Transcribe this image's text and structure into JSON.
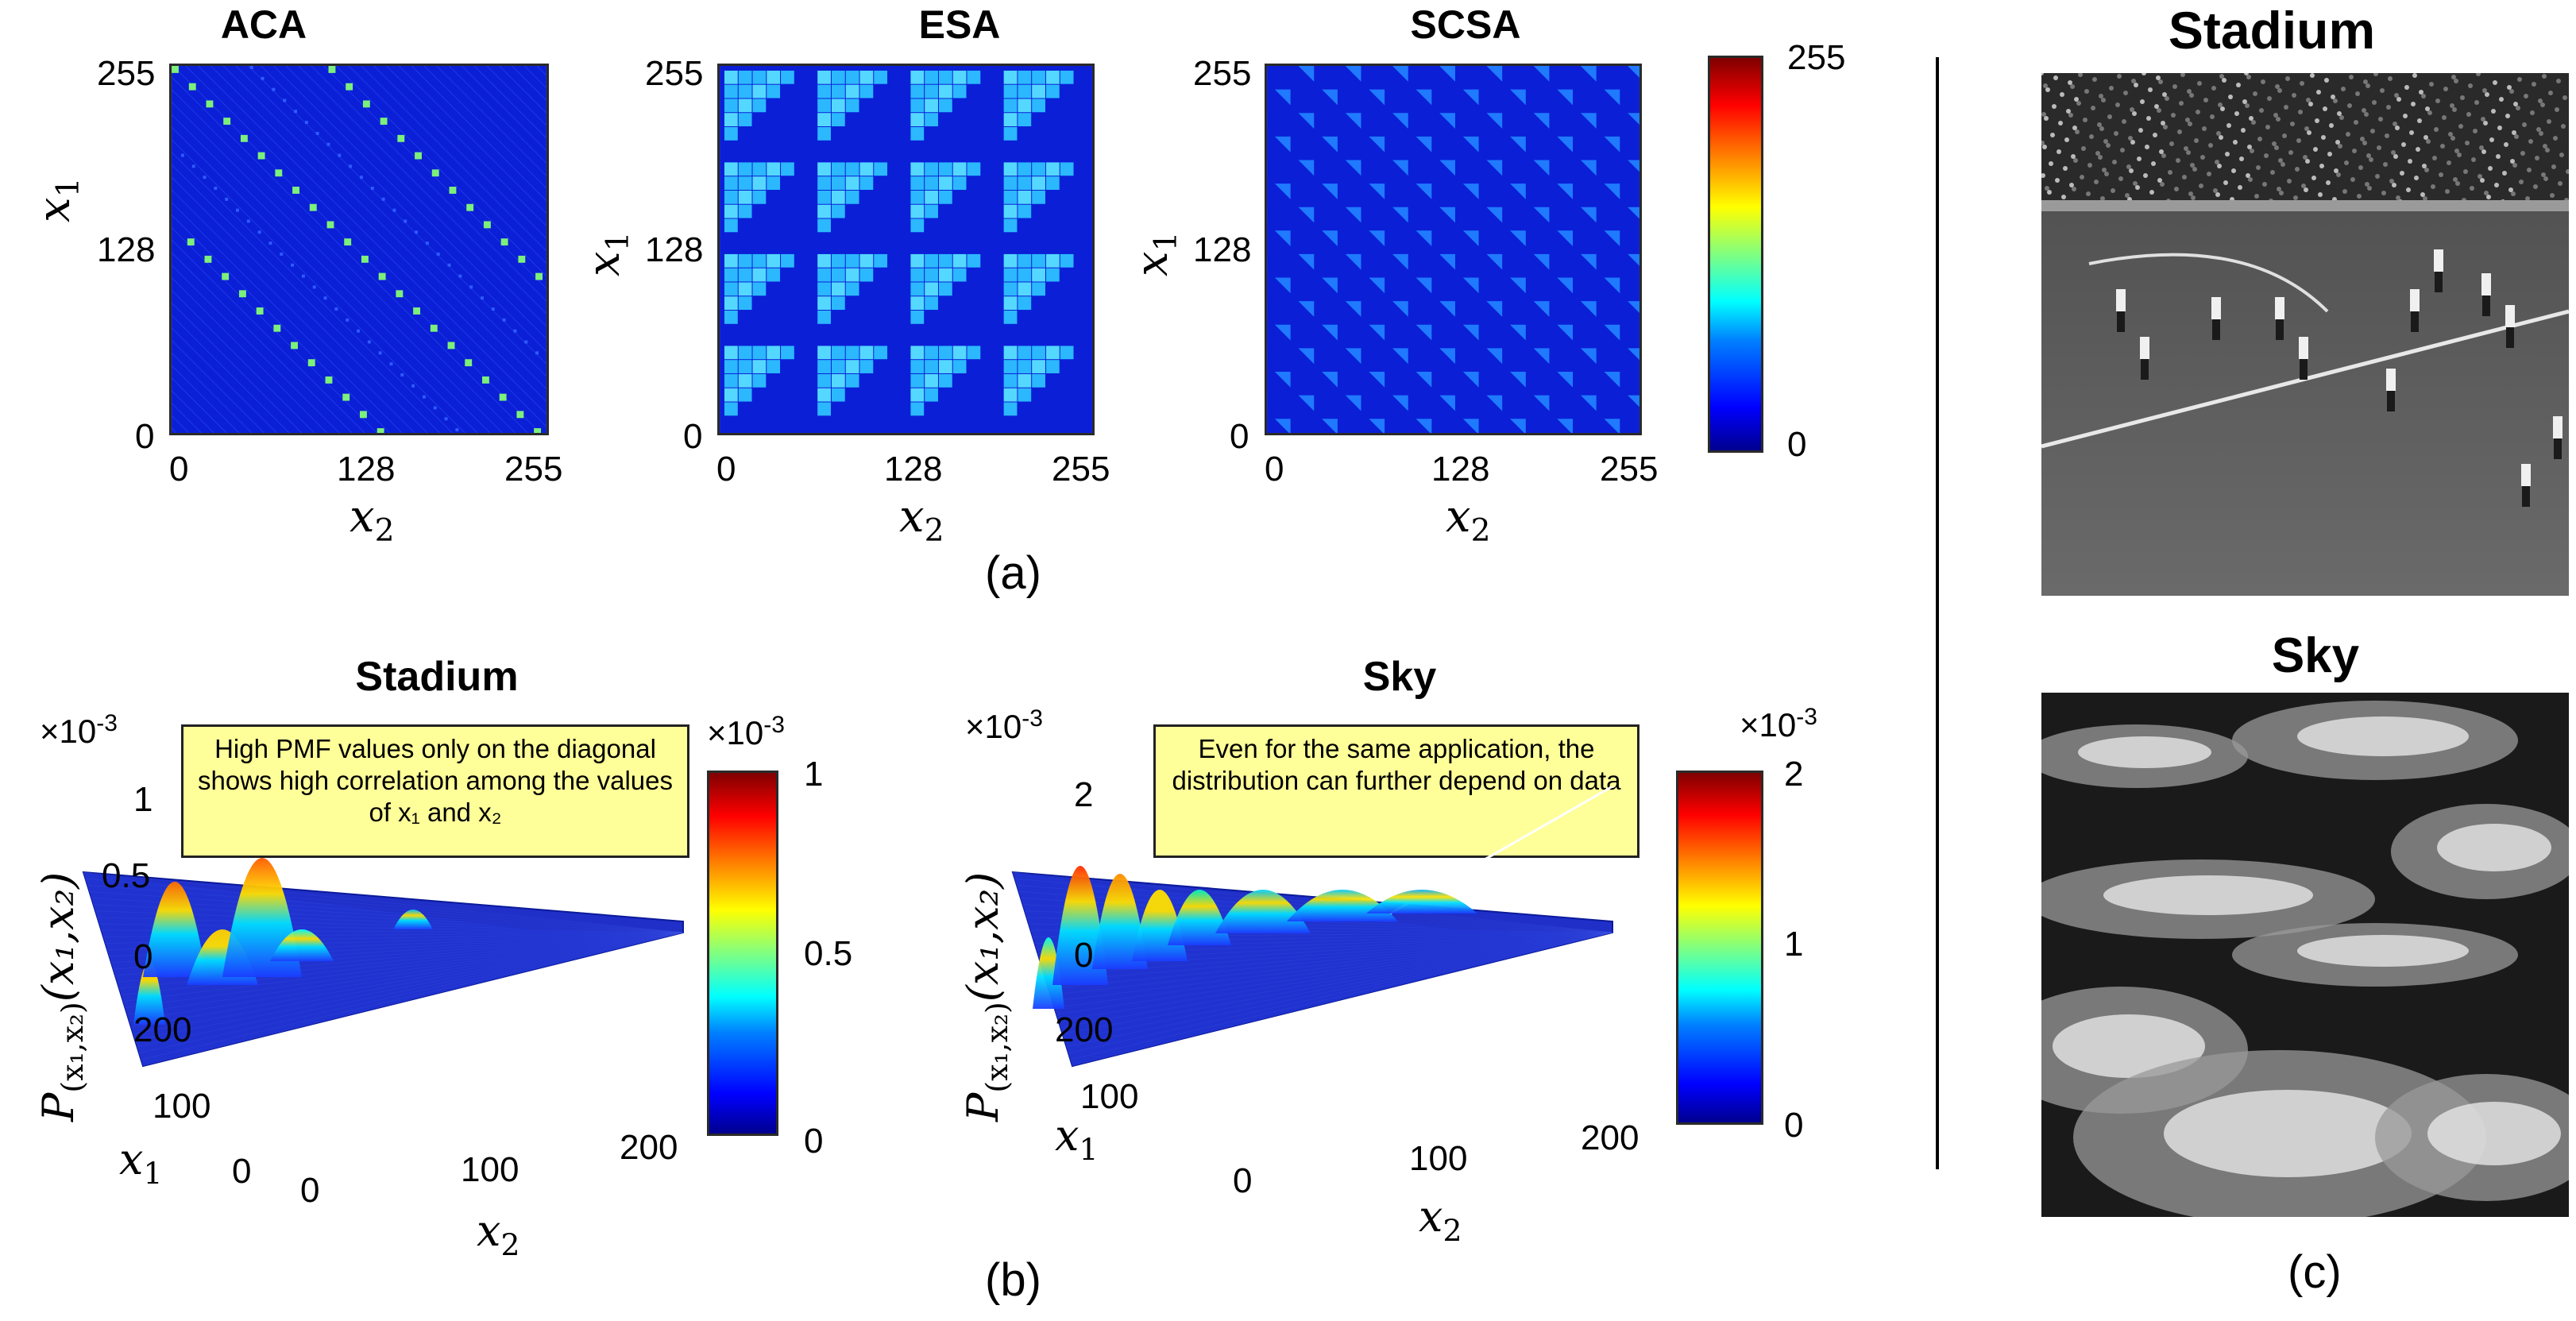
{
  "panel_a": {
    "caption": "(a)",
    "maps": [
      {
        "title": "ACA",
        "pattern": "diagonal-stripes"
      },
      {
        "title": "ESA",
        "pattern": "block-staircase"
      },
      {
        "title": "SCSA",
        "pattern": "diagonal-steps"
      }
    ],
    "x_ticks": [
      "0",
      "128",
      "255"
    ],
    "y_ticks": [
      "255",
      "128",
      "0"
    ],
    "x_label": "x",
    "x_label_sub": "2",
    "y_label": "x",
    "y_label_sub": "1",
    "colorbar": {
      "max": "255",
      "min": "0"
    }
  },
  "panel_b": {
    "caption": "(b)",
    "plots": [
      {
        "title": "Stadium",
        "scale": "×10",
        "scale_exp": "-3",
        "z_ticks": [
          "1",
          "0.5",
          "0"
        ],
        "y_ticks": [
          "200",
          "100",
          "0"
        ],
        "x_ticks": [
          "0",
          "100",
          "200"
        ],
        "callout": "High PMF values only on the diagonal shows high correlation among the values of x₁ and x₂",
        "colorbar_scale": "×10",
        "colorbar_scale_exp": "-3",
        "colorbar_ticks": [
          "1",
          "0.5",
          "0"
        ]
      },
      {
        "title": "Sky",
        "scale": "×10",
        "scale_exp": "-3",
        "z_ticks": [
          "2",
          "0"
        ],
        "y_ticks": [
          "200",
          "100"
        ],
        "x_ticks": [
          "0",
          "100",
          "200"
        ],
        "callout": "Even for the same application, the distribution can further depend on data",
        "colorbar_scale": "×10",
        "colorbar_scale_exp": "-3",
        "colorbar_ticks": [
          "2",
          "1",
          "0"
        ]
      }
    ],
    "z_label": "P",
    "z_label_sub": "(x₁,x₂)",
    "z_label_args": "(x₁,x₂)",
    "x_label": "x",
    "x_label_sub": "2",
    "y_label": "x",
    "y_label_sub": "1"
  },
  "panel_c": {
    "caption": "(c)",
    "images": [
      {
        "title": "Stadium"
      },
      {
        "title": "Sky"
      }
    ]
  },
  "colors": {
    "heat_bg": "#0b1fd6",
    "heat_line": "#2f5bff",
    "aca_spot": "#7cf07a",
    "esa_block": "#2bb8ff",
    "esa_light": "#55d8ff",
    "scsa_step": "#1f7aff",
    "callout_bg": "#ffff99"
  }
}
